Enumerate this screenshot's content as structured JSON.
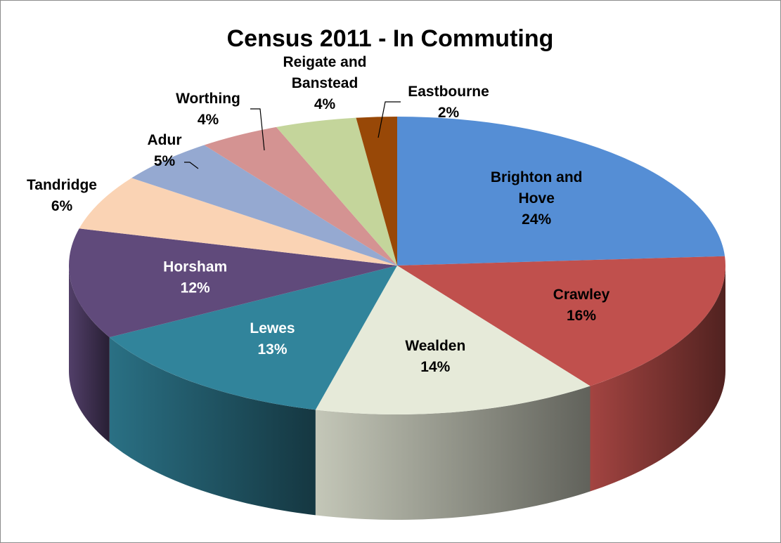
{
  "chart_data": {
    "type": "pie",
    "title": "Census 2011 - In Commuting",
    "style": "3d-exploded-none",
    "slices": [
      {
        "label_lines": [
          "Brighton and",
          "Hove"
        ],
        "value": 24,
        "display": "24%",
        "color": "#558ED5",
        "label_color": "#000000"
      },
      {
        "label_lines": [
          "Crawley"
        ],
        "value": 16,
        "display": "16%",
        "color": "#C0504D",
        "label_color": "#000000"
      },
      {
        "label_lines": [
          "Wealden"
        ],
        "value": 14,
        "display": "14%",
        "color": "#E6EAD9",
        "label_color": "#000000"
      },
      {
        "label_lines": [
          "Lewes"
        ],
        "value": 13,
        "display": "13%",
        "color": "#31849B",
        "label_color": "#ffffff"
      },
      {
        "label_lines": [
          "Horsham"
        ],
        "value": 12,
        "display": "12%",
        "color": "#604A7B",
        "label_color": "#ffffff"
      },
      {
        "label_lines": [
          "Tandridge"
        ],
        "value": 6,
        "display": "6%",
        "color": "#FAD3B4",
        "label_color": "#000000"
      },
      {
        "label_lines": [
          "Adur"
        ],
        "value": 5,
        "display": "5%",
        "color": "#95A9D1",
        "label_color": "#000000"
      },
      {
        "label_lines": [
          "Worthing"
        ],
        "value": 4,
        "display": "4%",
        "color": "#D49392",
        "label_color": "#000000"
      },
      {
        "label_lines": [
          "Reigate and",
          "Banstead"
        ],
        "value": 4,
        "display": "4%",
        "color": "#C4D59B",
        "label_color": "#000000"
      },
      {
        "label_lines": [
          "Eastbourne"
        ],
        "value": 2,
        "display": "2%",
        "color": "#984807",
        "label_color": "#000000"
      }
    ]
  }
}
